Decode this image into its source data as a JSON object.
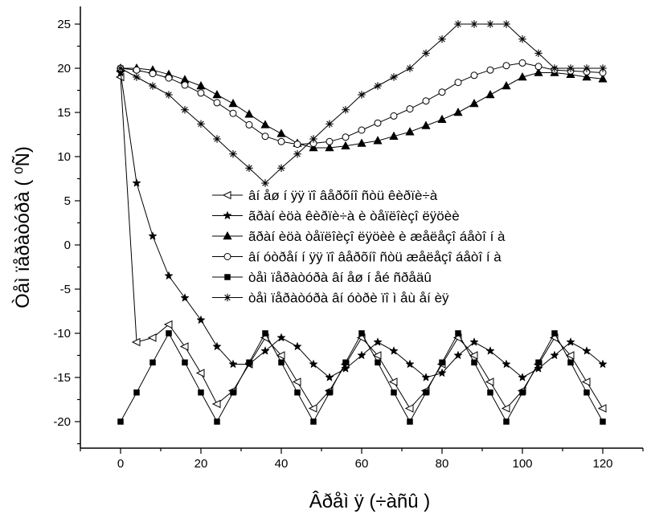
{
  "chart_data": {
    "type": "line",
    "xlabel": "Âðåì ÿ (÷àñû )",
    "ylabel": "Òåì ïåðàòóðà ( ⁰Ñ)",
    "xlim": [
      -10,
      130
    ],
    "ylim": [
      -23,
      27
    ],
    "xticks": [
      0,
      20,
      40,
      60,
      80,
      100,
      120
    ],
    "yticks": [
      -20,
      -15,
      -10,
      -5,
      0,
      5,
      10,
      15,
      20,
      25
    ],
    "legend_position": "center-right",
    "series": [
      {
        "name": "âí åø í ÿÿ ïî âåðõíî ñòü êèðïè÷à",
        "marker": "triangle-left-open",
        "x": [
          0,
          4,
          8,
          12,
          16,
          20,
          24,
          28,
          32,
          36,
          40,
          44,
          48,
          52,
          56,
          60,
          64,
          68,
          72,
          76,
          80,
          84,
          88,
          92,
          96,
          100,
          104,
          108,
          112,
          116,
          120
        ],
        "y": [
          19,
          -11,
          -10.5,
          -9,
          -11.5,
          -14.5,
          -18,
          -16.5,
          -13.5,
          -10.5,
          -12.5,
          -15.5,
          -18.5,
          -16.5,
          -13.5,
          -10.5,
          -12.5,
          -15.5,
          -18.5,
          -16.5,
          -13.5,
          -10.5,
          -12.5,
          -15.5,
          -18.5,
          -16.5,
          -13.5,
          -10.5,
          -12.5,
          -15.5,
          -18.5
        ]
      },
      {
        "name": "ãðàí èöà êèðïè÷à è òåïëîèçî ëÿöèè",
        "marker": "star-filled",
        "x": [
          0,
          4,
          8,
          12,
          16,
          20,
          24,
          28,
          32,
          36,
          40,
          44,
          48,
          52,
          56,
          60,
          64,
          68,
          72,
          76,
          80,
          84,
          88,
          92,
          96,
          100,
          104,
          108,
          112,
          116,
          120
        ],
        "y": [
          19.5,
          7,
          1,
          -3.5,
          -6,
          -8.5,
          -11.5,
          -13.5,
          -13.5,
          -12,
          -10.5,
          -11.5,
          -13.5,
          -15,
          -14,
          -12.5,
          -11,
          -12,
          -13.5,
          -15,
          -14.5,
          -12.5,
          -11,
          -12,
          -13.5,
          -15,
          -14,
          -12.5,
          -11,
          -12,
          -13.5
        ]
      },
      {
        "name": "ãðàí èöà òåïëîèçî ëÿöèè è æåëåçî áåòî í à",
        "marker": "triangle-up-filled",
        "x": [
          0,
          4,
          8,
          12,
          16,
          20,
          24,
          28,
          32,
          36,
          40,
          44,
          48,
          52,
          56,
          60,
          64,
          68,
          72,
          76,
          80,
          84,
          88,
          92,
          96,
          100,
          104,
          108,
          112,
          116,
          120
        ],
        "y": [
          20,
          20,
          19.8,
          19.3,
          18.7,
          18,
          17,
          16,
          14.8,
          13.6,
          12.6,
          11.5,
          11,
          11,
          11.2,
          11.5,
          11.8,
          12.3,
          12.8,
          13.5,
          14.2,
          15,
          16,
          17,
          18,
          19,
          19.5,
          19.5,
          19.3,
          19,
          18.8
        ]
      },
      {
        "name": "âí óòðåí í ÿÿ ïî âåðõíî ñòü æåëåçî áåòî í à",
        "marker": "circle-open",
        "x": [
          0,
          4,
          8,
          12,
          16,
          20,
          24,
          28,
          32,
          36,
          40,
          44,
          48,
          52,
          56,
          60,
          64,
          68,
          72,
          76,
          80,
          84,
          88,
          92,
          96,
          100,
          104,
          108,
          112,
          116,
          120
        ],
        "y": [
          20,
          19.8,
          19.4,
          18.9,
          18.1,
          17.2,
          16.1,
          14.9,
          13.6,
          12.3,
          11.7,
          11.4,
          11.5,
          11.7,
          12.2,
          13,
          13.8,
          14.6,
          15.4,
          16.3,
          17.3,
          18.4,
          19.2,
          19.8,
          20.3,
          20.6,
          20.2,
          19.8,
          19.7,
          19.6,
          19.5
        ]
      },
      {
        "name": "òåì ïåðàòóðà âí åø í åé ñðåäû",
        "marker": "square-filled",
        "x": [
          0,
          4,
          8,
          12,
          16,
          20,
          24,
          28,
          32,
          36,
          40,
          44,
          48,
          52,
          56,
          60,
          64,
          68,
          72,
          76,
          80,
          84,
          88,
          92,
          96,
          100,
          104,
          108,
          112,
          116,
          120
        ],
        "y": [
          -20,
          -16.7,
          -13.3,
          -10,
          -13.3,
          -16.7,
          -20,
          -16.7,
          -13.3,
          -10,
          -13.3,
          -16.7,
          -20,
          -16.7,
          -13.3,
          -10,
          -13.3,
          -16.7,
          -20,
          -16.7,
          -13.3,
          -10,
          -13.3,
          -16.7,
          -20,
          -16.7,
          -13.3,
          -10,
          -13.3,
          -16.7,
          -20
        ]
      },
      {
        "name": "òåì ïåðàòóðà âí óòðè ïî ì åù åí èÿ",
        "marker": "asterisk",
        "x": [
          0,
          4,
          8,
          12,
          16,
          20,
          24,
          28,
          32,
          36,
          40,
          44,
          48,
          52,
          56,
          60,
          64,
          68,
          72,
          76,
          80,
          84,
          88,
          92,
          96,
          100,
          104,
          108,
          112,
          116,
          120
        ],
        "y": [
          20,
          19,
          18,
          17,
          15.3,
          13.7,
          12,
          10.3,
          8.7,
          7,
          8.7,
          10.3,
          12,
          13.7,
          15.3,
          17,
          18,
          19,
          20,
          21.7,
          23.3,
          25,
          25,
          25,
          25,
          23.3,
          21.7,
          20,
          20,
          20,
          20
        ]
      }
    ]
  }
}
